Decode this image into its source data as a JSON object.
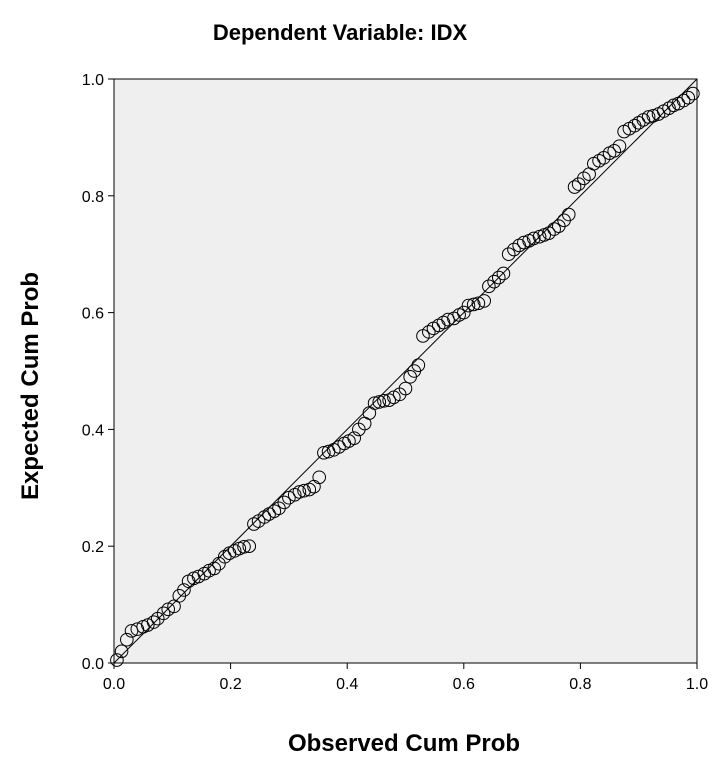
{
  "chart_data": {
    "type": "scatter",
    "title": "Dependent Variable: IDX",
    "xlabel": "Observed Cum Prob",
    "ylabel": "Expected Cum Prob",
    "xlim": [
      0.0,
      1.0
    ],
    "ylim": [
      0.0,
      1.0
    ],
    "x_ticks": [
      "0.0",
      "0.2",
      "0.4",
      "0.6",
      "0.8",
      "1.0"
    ],
    "y_ticks": [
      "0.0",
      "0.2",
      "0.4",
      "0.6",
      "0.8",
      "1.0"
    ],
    "grid": false,
    "legend": "none",
    "colors": {
      "plot_background": "#efefef",
      "marker": "#000000",
      "line": "#000000"
    },
    "reference_line": {
      "from": [
        0.0,
        0.0
      ],
      "to": [
        1.0,
        1.0
      ]
    },
    "points": [
      [
        0.005,
        0.005
      ],
      [
        0.013,
        0.02
      ],
      [
        0.022,
        0.04
      ],
      [
        0.03,
        0.055
      ],
      [
        0.04,
        0.058
      ],
      [
        0.05,
        0.062
      ],
      [
        0.058,
        0.065
      ],
      [
        0.068,
        0.07
      ],
      [
        0.075,
        0.076
      ],
      [
        0.085,
        0.085
      ],
      [
        0.093,
        0.092
      ],
      [
        0.103,
        0.097
      ],
      [
        0.112,
        0.115
      ],
      [
        0.12,
        0.125
      ],
      [
        0.128,
        0.14
      ],
      [
        0.137,
        0.145
      ],
      [
        0.145,
        0.148
      ],
      [
        0.155,
        0.153
      ],
      [
        0.163,
        0.158
      ],
      [
        0.172,
        0.162
      ],
      [
        0.18,
        0.17
      ],
      [
        0.19,
        0.182
      ],
      [
        0.198,
        0.188
      ],
      [
        0.207,
        0.192
      ],
      [
        0.215,
        0.196
      ],
      [
        0.223,
        0.199
      ],
      [
        0.232,
        0.2
      ],
      [
        0.24,
        0.238
      ],
      [
        0.248,
        0.243
      ],
      [
        0.258,
        0.25
      ],
      [
        0.266,
        0.255
      ],
      [
        0.275,
        0.26
      ],
      [
        0.283,
        0.265
      ],
      [
        0.292,
        0.275
      ],
      [
        0.3,
        0.283
      ],
      [
        0.31,
        0.288
      ],
      [
        0.318,
        0.293
      ],
      [
        0.326,
        0.295
      ],
      [
        0.335,
        0.297
      ],
      [
        0.343,
        0.302
      ],
      [
        0.352,
        0.318
      ],
      [
        0.36,
        0.36
      ],
      [
        0.368,
        0.362
      ],
      [
        0.377,
        0.365
      ],
      [
        0.386,
        0.37
      ],
      [
        0.395,
        0.376
      ],
      [
        0.403,
        0.38
      ],
      [
        0.412,
        0.385
      ],
      [
        0.42,
        0.4
      ],
      [
        0.43,
        0.41
      ],
      [
        0.438,
        0.428
      ],
      [
        0.447,
        0.445
      ],
      [
        0.455,
        0.447
      ],
      [
        0.463,
        0.449
      ],
      [
        0.472,
        0.45
      ],
      [
        0.48,
        0.455
      ],
      [
        0.49,
        0.46
      ],
      [
        0.5,
        0.47
      ],
      [
        0.508,
        0.49
      ],
      [
        0.515,
        0.5
      ],
      [
        0.522,
        0.51
      ],
      [
        0.53,
        0.56
      ],
      [
        0.54,
        0.567
      ],
      [
        0.548,
        0.573
      ],
      [
        0.557,
        0.578
      ],
      [
        0.565,
        0.583
      ],
      [
        0.573,
        0.588
      ],
      [
        0.583,
        0.59
      ],
      [
        0.592,
        0.596
      ],
      [
        0.6,
        0.6
      ],
      [
        0.608,
        0.612
      ],
      [
        0.617,
        0.614
      ],
      [
        0.625,
        0.616
      ],
      [
        0.635,
        0.62
      ],
      [
        0.643,
        0.645
      ],
      [
        0.652,
        0.653
      ],
      [
        0.66,
        0.66
      ],
      [
        0.668,
        0.667
      ],
      [
        0.677,
        0.7
      ],
      [
        0.686,
        0.708
      ],
      [
        0.695,
        0.715
      ],
      [
        0.703,
        0.72
      ],
      [
        0.712,
        0.723
      ],
      [
        0.72,
        0.727
      ],
      [
        0.73,
        0.73
      ],
      [
        0.738,
        0.733
      ],
      [
        0.746,
        0.736
      ],
      [
        0.755,
        0.743
      ],
      [
        0.763,
        0.748
      ],
      [
        0.772,
        0.758
      ],
      [
        0.78,
        0.768
      ],
      [
        0.79,
        0.815
      ],
      [
        0.797,
        0.82
      ],
      [
        0.806,
        0.83
      ],
      [
        0.815,
        0.837
      ],
      [
        0.823,
        0.855
      ],
      [
        0.832,
        0.86
      ],
      [
        0.84,
        0.865
      ],
      [
        0.85,
        0.873
      ],
      [
        0.858,
        0.877
      ],
      [
        0.867,
        0.885
      ],
      [
        0.875,
        0.91
      ],
      [
        0.884,
        0.915
      ],
      [
        0.893,
        0.92
      ],
      [
        0.9,
        0.925
      ],
      [
        0.908,
        0.93
      ],
      [
        0.917,
        0.935
      ],
      [
        0.925,
        0.937
      ],
      [
        0.934,
        0.94
      ],
      [
        0.943,
        0.945
      ],
      [
        0.952,
        0.95
      ],
      [
        0.96,
        0.955
      ],
      [
        0.968,
        0.958
      ],
      [
        0.977,
        0.963
      ],
      [
        0.985,
        0.968
      ],
      [
        0.993,
        0.975
      ]
    ]
  }
}
